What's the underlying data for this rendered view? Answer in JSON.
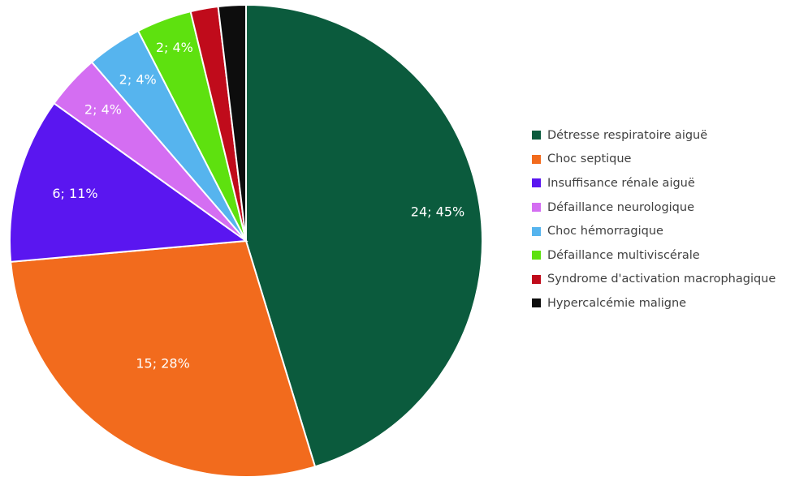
{
  "chart_data": {
    "type": "pie",
    "title": "",
    "start_angle_deg": 0,
    "direction": "clockwise",
    "legend_position": "right",
    "slices": [
      {
        "label": "Détresse respiratoire aiguë",
        "value": 24,
        "percent": 45,
        "data_label": "24; 45%",
        "color": "#0b5b3d"
      },
      {
        "label": "Choc septique",
        "value": 15,
        "percent": 28,
        "data_label": "15; 28%",
        "color": "#f26b1d"
      },
      {
        "label": "Insuffisance rénale aiguë",
        "value": 6,
        "percent": 11,
        "data_label": "6; 11%",
        "color": "#5a16f0"
      },
      {
        "label": "Défaillance neurologique",
        "value": 2,
        "percent": 4,
        "data_label": "2; 4%",
        "color": "#d46ef2"
      },
      {
        "label": "Choc hémorragique",
        "value": 2,
        "percent": 4,
        "data_label": "2; 4%",
        "color": "#56b4ee"
      },
      {
        "label": "Défaillance multiviscérale",
        "value": 2,
        "percent": 4,
        "data_label": "2; 4%",
        "color": "#5ee10f"
      },
      {
        "label": "Syndrome d'activation macrophagique",
        "value": 1,
        "percent": 2,
        "data_label": "",
        "color": "#c00b1b"
      },
      {
        "label": "Hypercalcémie maligne",
        "value": 1,
        "percent": 2,
        "data_label": "",
        "color": "#0d0d0d"
      }
    ]
  }
}
